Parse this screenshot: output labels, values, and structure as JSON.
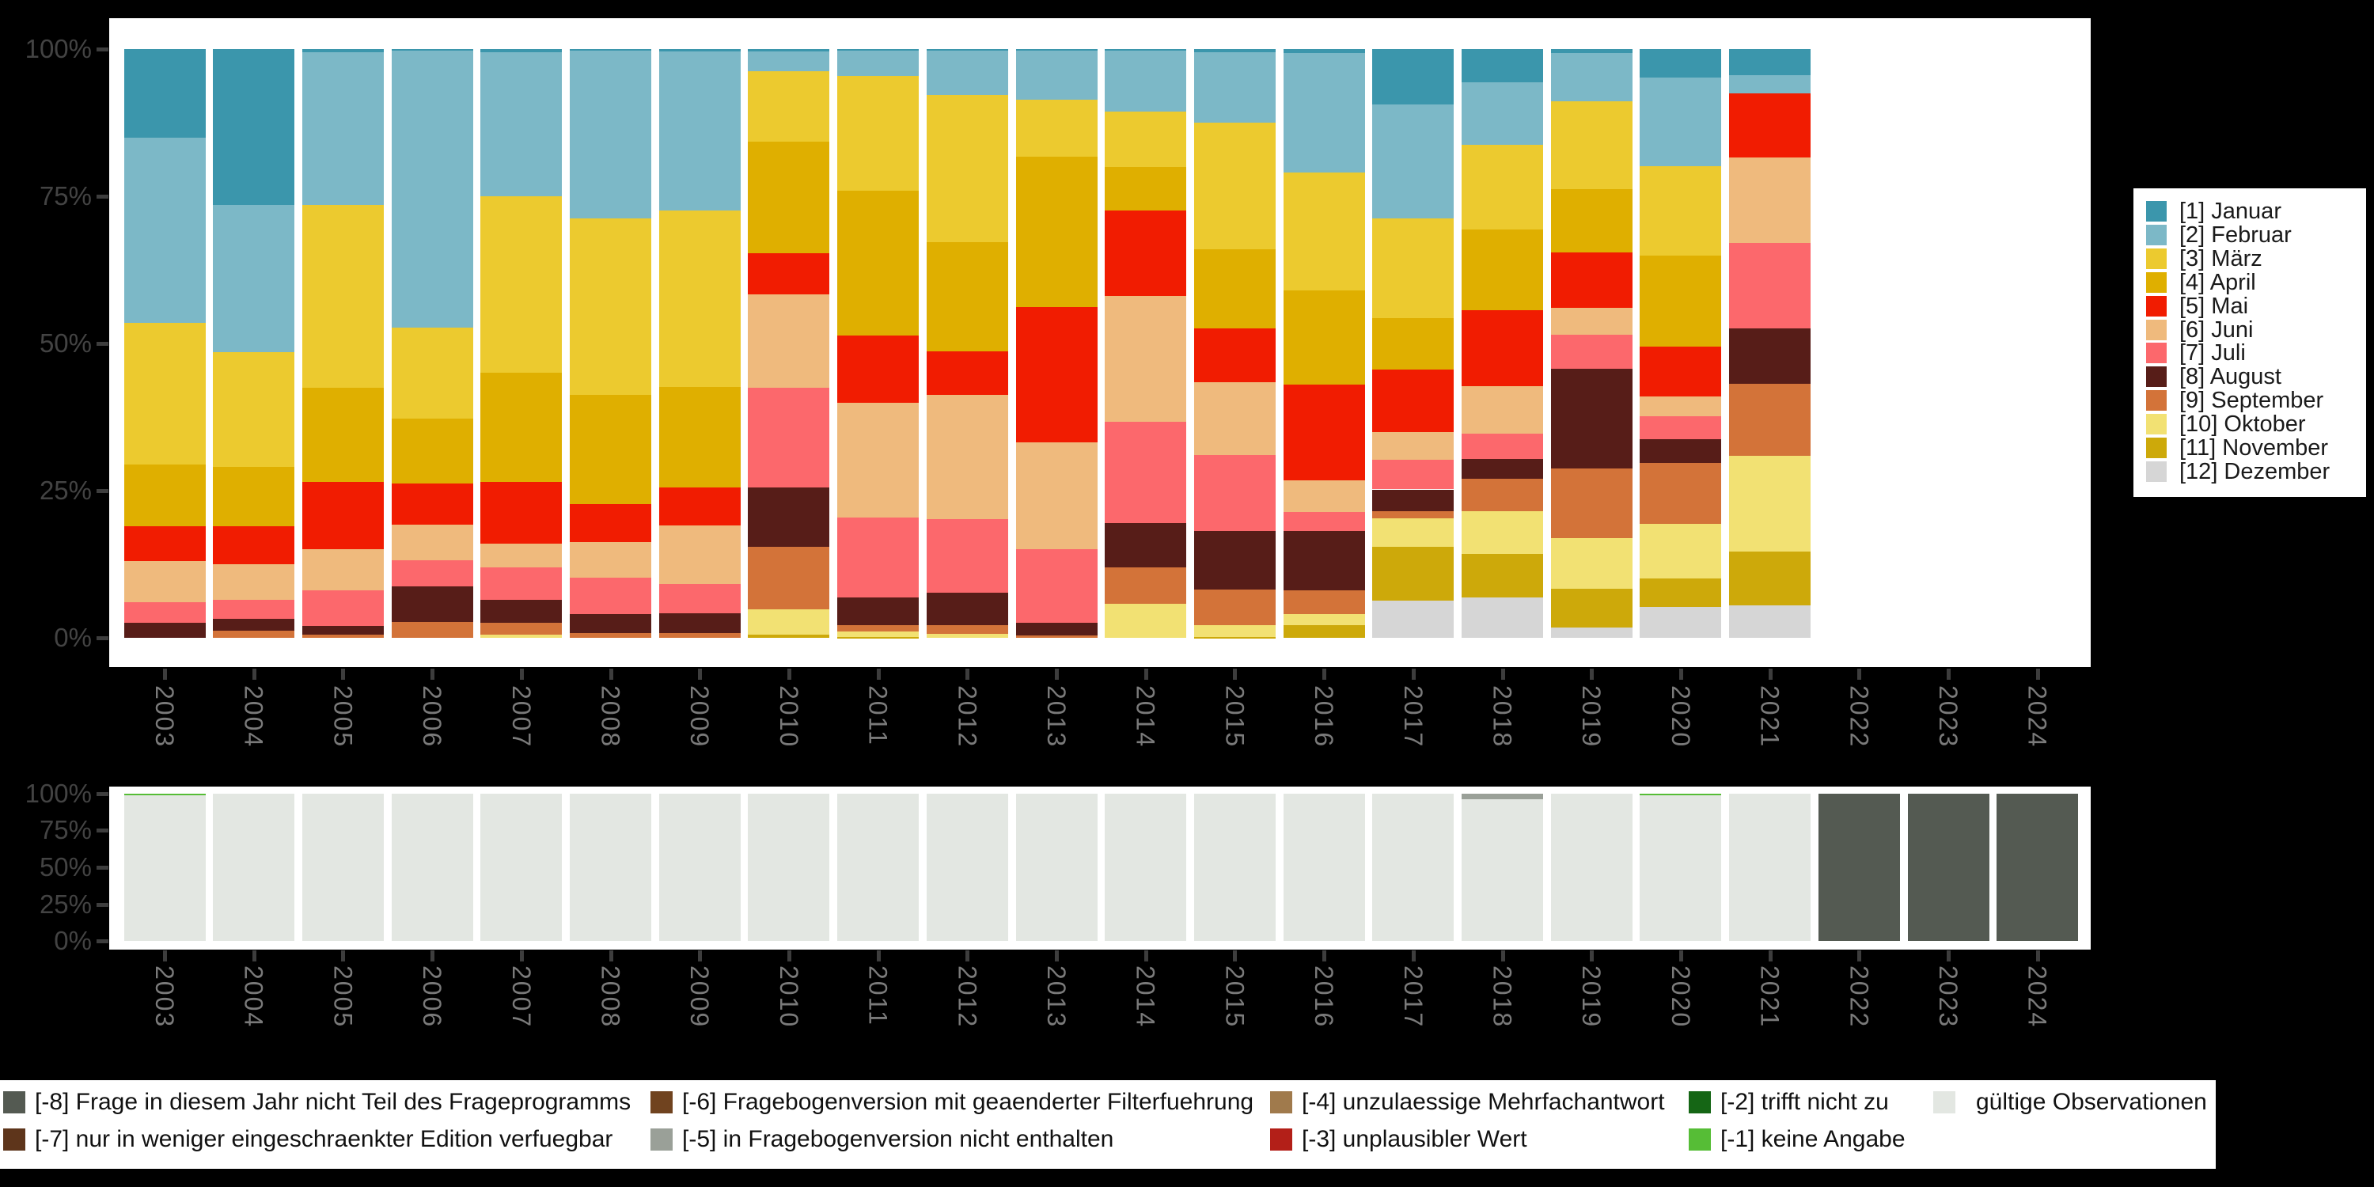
{
  "page": {
    "background": "#000000"
  },
  "axes": {
    "y_ticks": [
      "100%",
      "75%",
      "50%",
      "25%",
      "0%"
    ],
    "x_categories": [
      "2003",
      "2004",
      "2005",
      "2006",
      "2007",
      "2008",
      "2009",
      "2010",
      "2011",
      "2012",
      "2013",
      "2014",
      "2015",
      "2016",
      "2017",
      "2018",
      "2019",
      "2020",
      "2021",
      "2022",
      "2023",
      "2024"
    ]
  },
  "chart_data": [
    {
      "id": "months",
      "type": "bar",
      "stacked": true,
      "title": "",
      "xlabel": "",
      "ylabel": "",
      "ylim": [
        0,
        100
      ],
      "grid": false,
      "legend_position": "right",
      "categories": [
        "2003",
        "2004",
        "2005",
        "2006",
        "2007",
        "2008",
        "2009",
        "2010",
        "2011",
        "2012",
        "2013",
        "2014",
        "2015",
        "2016",
        "2017",
        "2018",
        "2019",
        "2020",
        "2021",
        "2022",
        "2023",
        "2024"
      ],
      "y_ticks": [
        "100%",
        "75%",
        "50%",
        "25%",
        "0%"
      ],
      "series": [
        {
          "name": "[1] Januar",
          "color": "#3b96ac",
          "values": [
            15,
            26.5,
            0.5,
            0.3,
            0.5,
            0.3,
            0.4,
            0.4,
            0.3,
            0.3,
            0.3,
            0.3,
            0.5,
            0.7,
            9.4,
            5.7,
            0.7,
            4.8,
            4.5,
            null,
            null,
            null
          ]
        },
        {
          "name": "[2] Februar",
          "color": "#7cb8c7",
          "values": [
            31.5,
            25,
            26,
            47,
            24.5,
            28.5,
            27,
            3.3,
            4.3,
            7.5,
            8.3,
            10.3,
            12,
            20.3,
            19.3,
            10.6,
            8.2,
            15.1,
            3,
            null,
            null,
            null
          ]
        },
        {
          "name": "[3] März",
          "color": "#ecca2f",
          "values": [
            24,
            19.5,
            31,
            15.5,
            30,
            30,
            30,
            12,
            19.5,
            25,
            9.7,
            9.4,
            21.5,
            20,
            17,
            14.3,
            14.9,
            15.2,
            0,
            null,
            null,
            null
          ]
        },
        {
          "name": "[4] April",
          "color": "#dfaf00",
          "values": [
            10.5,
            10,
            16,
            11,
            18.5,
            18.5,
            17,
            19,
            24.5,
            18.5,
            25.5,
            7.4,
            13.4,
            16,
            8.8,
            13.8,
            10.8,
            15.5,
            0,
            null,
            null,
            null
          ]
        },
        {
          "name": "[5] Mai",
          "color": "#f11c01",
          "values": [
            6,
            6.5,
            11.5,
            7,
            10.5,
            6.5,
            6.5,
            7,
            11.5,
            7.5,
            23,
            14.6,
            9.2,
            16.2,
            10.6,
            12.8,
            9.4,
            8.4,
            10.9,
            null,
            null,
            null
          ]
        },
        {
          "name": "[6] Juni",
          "color": "#efba7d",
          "values": [
            7,
            6,
            7,
            6,
            4,
            6,
            10,
            15.8,
            19.5,
            21,
            18.2,
            21.3,
            12.4,
            5.4,
            4.7,
            8.1,
            4.5,
            3.3,
            14.5,
            null,
            null,
            null
          ]
        },
        {
          "name": "[7] Juli",
          "color": "#fc686c",
          "values": [
            3.5,
            3.3,
            6,
            4.5,
            5.5,
            6.2,
            5,
            17,
            13.5,
            12.5,
            12.4,
            17.2,
            12.8,
            3.2,
            5,
            4.3,
            5.8,
            4,
            14.6,
            null,
            null,
            null
          ]
        },
        {
          "name": "[8] August",
          "color": "#571d18",
          "values": [
            2.5,
            2,
            1.5,
            6,
            4,
            3.2,
            3.3,
            10,
            4.7,
            5.5,
            2.2,
            7.6,
            10,
            10.1,
            3.7,
            3.4,
            16.9,
            4,
            9.4,
            null,
            null,
            null
          ]
        },
        {
          "name": "[9] September",
          "color": "#d37339",
          "values": [
            0,
            1.2,
            0.5,
            2.7,
            2,
            0.8,
            0.8,
            10.6,
            1.1,
            1.5,
            0.4,
            6.1,
            6,
            4.1,
            1.2,
            5.5,
            11.8,
            10.4,
            12.2,
            null,
            null,
            null
          ]
        },
        {
          "name": "[10] Oktober",
          "color": "#f2e173",
          "values": [
            0,
            0,
            0,
            0,
            0.5,
            0,
            0,
            4.4,
            0.9,
            0.7,
            0,
            5.8,
            2,
            1.8,
            4.8,
            7.2,
            8.7,
            9.2,
            16.2,
            null,
            null,
            null
          ]
        },
        {
          "name": "[11] November",
          "color": "#cda90a",
          "values": [
            0,
            0,
            0,
            0,
            0,
            0,
            0,
            0.5,
            0.2,
            0,
            0,
            0,
            0.2,
            2.2,
            9.2,
            7.5,
            6.5,
            4.8,
            9.2,
            null,
            null,
            null
          ]
        },
        {
          "name": "[12] Dezember",
          "color": "#d6d6d6",
          "values": [
            0,
            0,
            0,
            0,
            0,
            0,
            0,
            0,
            0,
            0,
            0,
            0,
            0,
            0,
            6.3,
            6.8,
            1.8,
            5.3,
            5.5,
            null,
            null,
            null
          ]
        }
      ]
    },
    {
      "id": "missings",
      "type": "bar",
      "stacked": true,
      "title": "",
      "xlabel": "",
      "ylabel": "",
      "ylim": [
        0,
        100
      ],
      "grid": false,
      "legend_position": "bottom",
      "categories": [
        "2003",
        "2004",
        "2005",
        "2006",
        "2007",
        "2008",
        "2009",
        "2010",
        "2011",
        "2012",
        "2013",
        "2014",
        "2015",
        "2016",
        "2017",
        "2018",
        "2019",
        "2020",
        "2021",
        "2022",
        "2023",
        "2024"
      ],
      "y_ticks": [
        "100%",
        "75%",
        "50%",
        "25%",
        "0%"
      ],
      "series": [
        {
          "name": "[-8] Frage in diesem Jahr nicht Teil des Frageprogramms",
          "color": "#545a52",
          "values": [
            0,
            0,
            0,
            0,
            0,
            0,
            0,
            0,
            0,
            0,
            0,
            0,
            0,
            0,
            0,
            0,
            0,
            0,
            0,
            100,
            100,
            100
          ]
        },
        {
          "name": "[-7] nur in weniger eingeschraenkter Edition verfuegbar",
          "color": "#5e351b",
          "values": [
            0,
            0,
            0,
            0,
            0,
            0,
            0,
            0,
            0,
            0,
            0,
            0,
            0,
            0,
            0,
            0,
            0,
            0,
            0,
            0,
            0,
            0
          ]
        },
        {
          "name": "[-6] Fragebogenversion mit geaenderter Filterfuehrung",
          "color": "#70431f",
          "values": [
            0,
            0,
            0,
            0,
            0,
            0,
            0,
            0,
            0,
            0,
            0,
            0,
            0,
            0,
            0,
            0,
            0,
            0,
            0,
            0,
            0,
            0
          ]
        },
        {
          "name": "[-5] in Fragebogenversion nicht enthalten",
          "color": "#9aa098",
          "values": [
            0,
            0,
            0,
            0,
            0,
            0,
            0,
            0,
            0,
            0,
            0,
            0,
            0,
            0,
            0,
            4,
            0,
            0,
            0,
            0,
            0,
            0
          ]
        },
        {
          "name": "[-4] unzulaessige Mehrfachantwort",
          "color": "#a07a4c",
          "values": [
            0,
            0,
            0,
            0,
            0,
            0,
            0,
            0,
            0,
            0,
            0,
            0,
            0,
            0,
            0,
            0,
            0,
            0,
            0,
            0,
            0,
            0
          ]
        },
        {
          "name": "[-3] unplausibler Wert",
          "color": "#b31f18",
          "values": [
            0,
            0,
            0,
            0,
            0,
            0,
            0,
            0,
            0,
            0,
            0,
            0,
            0,
            0,
            0,
            0,
            0,
            0,
            0,
            0,
            0,
            0
          ]
        },
        {
          "name": "[-2] trifft nicht zu",
          "color": "#156615",
          "values": [
            0,
            0,
            0,
            0,
            0,
            0,
            0,
            0,
            0,
            0,
            0,
            0,
            0,
            0,
            0,
            0,
            0,
            0,
            0,
            0,
            0,
            0
          ]
        },
        {
          "name": "[-1] keine Angabe",
          "color": "#56bd36",
          "values": [
            1.2,
            0,
            0,
            0,
            0,
            0,
            0,
            0,
            0,
            0,
            0,
            0,
            0,
            0,
            0,
            0,
            0,
            1,
            0,
            0,
            0,
            0
          ]
        },
        {
          "name": "gültige Observationen",
          "color": "#e3e7e2",
          "values": [
            98.8,
            100,
            100,
            100,
            100,
            100,
            100,
            100,
            100,
            100,
            100,
            100,
            100,
            100,
            100,
            96,
            100,
            99,
            100,
            0,
            0,
            0
          ]
        }
      ]
    }
  ]
}
